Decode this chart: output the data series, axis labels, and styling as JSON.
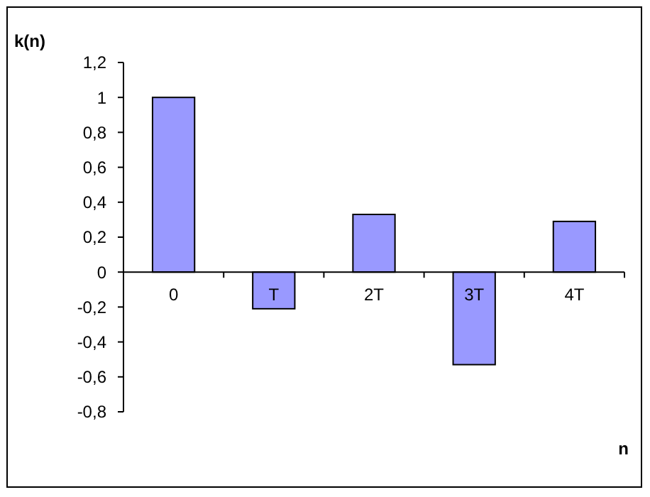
{
  "chart_data": {
    "type": "bar",
    "xlabel": "n",
    "ylabel": "k(n)",
    "categories": [
      "0",
      "T",
      "2T",
      "3T",
      "4T"
    ],
    "values": [
      1.0,
      -0.21,
      0.33,
      -0.53,
      0.29
    ],
    "color": "#9999ff",
    "ylim": [
      -0.8,
      1.2
    ],
    "yticks": [
      {
        "value": -0.8,
        "label": "-0,8"
      },
      {
        "value": -0.6,
        "label": "-0,6"
      },
      {
        "value": -0.4,
        "label": "-0,4"
      },
      {
        "value": -0.2,
        "label": "-0,2"
      },
      {
        "value": 0,
        "label": "0"
      },
      {
        "value": 0.2,
        "label": "0,2"
      },
      {
        "value": 0.4,
        "label": "0,4"
      },
      {
        "value": 0.6,
        "label": "0,6"
      },
      {
        "value": 0.8,
        "label": "0,8"
      },
      {
        "value": 1,
        "label": "1"
      },
      {
        "value": 1.2,
        "label": "1,2"
      }
    ],
    "grid": false
  }
}
